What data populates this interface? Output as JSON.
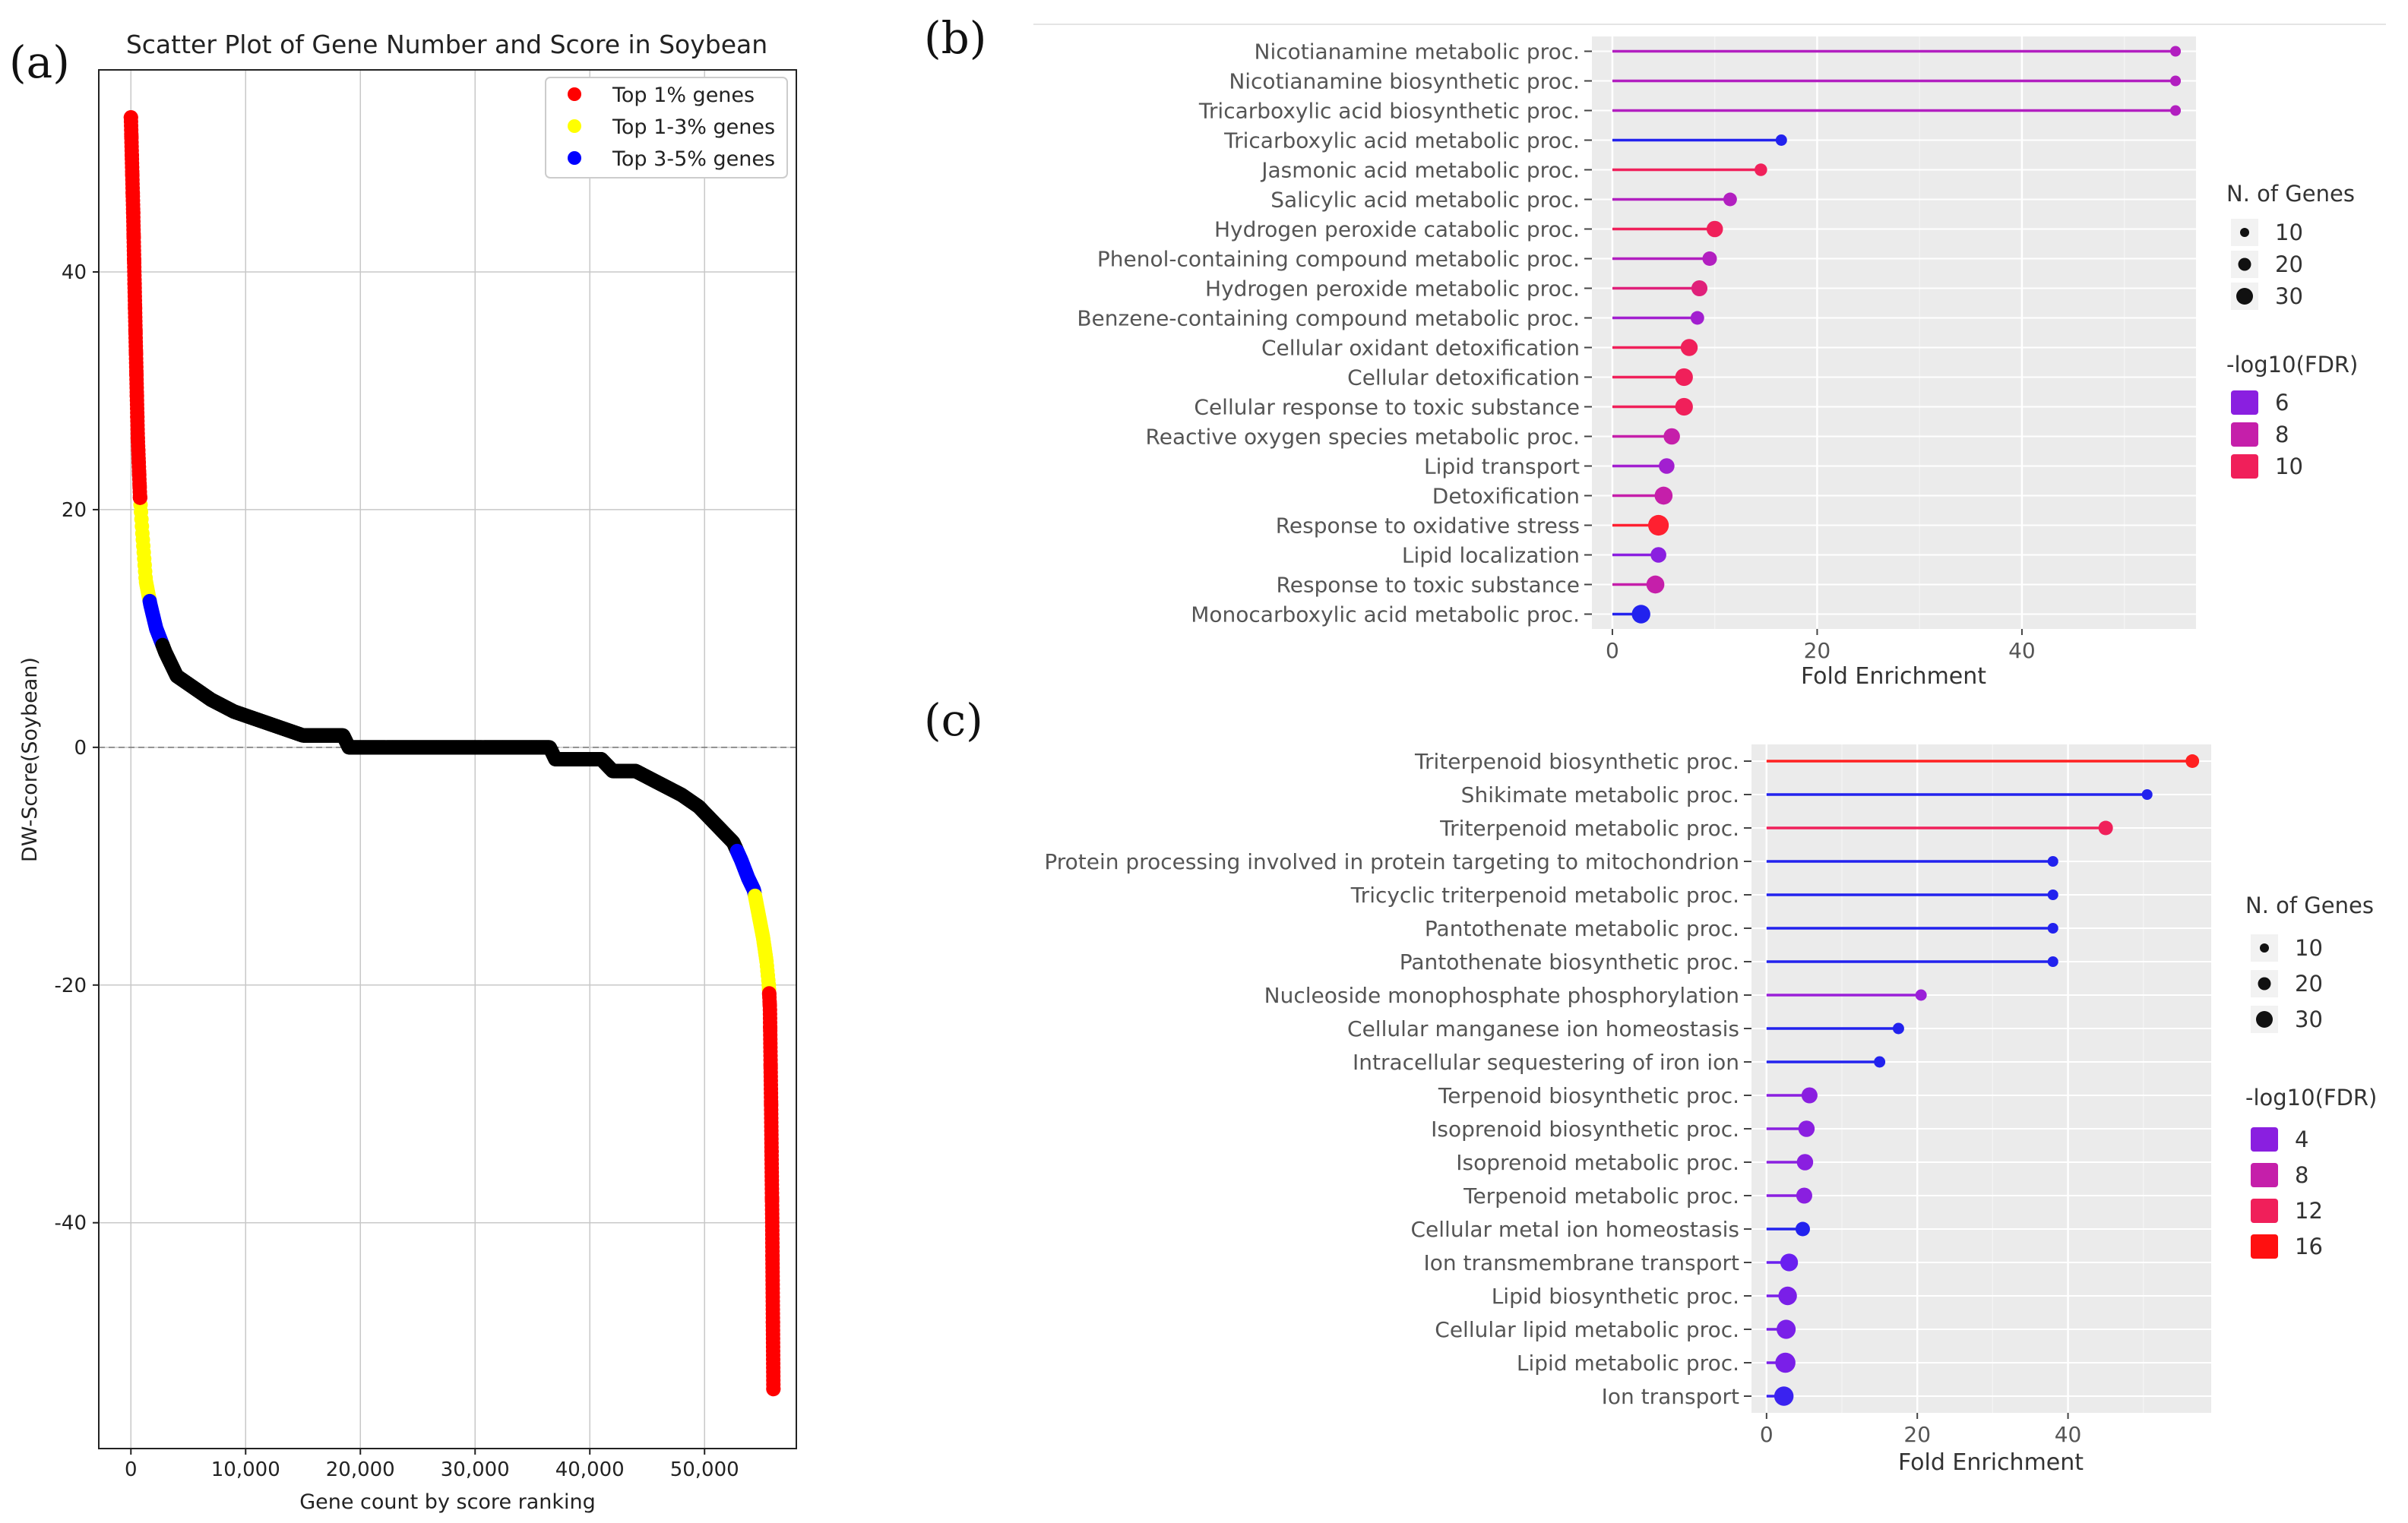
{
  "panels": {
    "a": "(a)",
    "b": "(b)",
    "c": "(c)"
  },
  "chart_data": [
    {
      "type": "scatter",
      "title": "Scatter Plot of Gene Number and Score in Soybean",
      "xlabel": "Gene count by score ranking",
      "ylabel": "DW-Score(Soybean)",
      "xlim": [
        -2800,
        58000
      ],
      "ylim": [
        -59,
        57
      ],
      "xticks": [
        0,
        10000,
        20000,
        30000,
        40000,
        50000
      ],
      "xtick_labels": [
        "0",
        "10,000",
        "20,000",
        "30,000",
        "40,000",
        "50,000"
      ],
      "yticks": [
        40,
        20,
        0,
        -20,
        -40
      ],
      "ytick_labels": [
        "40",
        "20",
        "0",
        "-20",
        "-40"
      ],
      "grid": true,
      "legend_position": "top-right",
      "legend": [
        {
          "label": "Top 1% genes",
          "color": "#ff0000"
        },
        {
          "label": "Top 1-3% genes",
          "color": "#ffff00"
        },
        {
          "label": "Top 3-5% genes",
          "color": "#0000ff"
        }
      ],
      "background_color": "#000000",
      "curve": [
        [
          0,
          53
        ],
        [
          200,
          45
        ],
        [
          400,
          35
        ],
        [
          600,
          26
        ],
        [
          800,
          21
        ],
        [
          1000,
          18
        ],
        [
          1300,
          14
        ],
        [
          1700,
          12
        ],
        [
          2200,
          10
        ],
        [
          3000,
          8
        ],
        [
          4000,
          6
        ],
        [
          5500,
          5
        ],
        [
          7000,
          4
        ],
        [
          9000,
          3
        ],
        [
          12000,
          2
        ],
        [
          15000,
          1
        ],
        [
          18500,
          1
        ],
        [
          19000,
          0
        ],
        [
          36500,
          0
        ],
        [
          37000,
          -1
        ],
        [
          41000,
          -1
        ],
        [
          42000,
          -2
        ],
        [
          44000,
          -2
        ],
        [
          46000,
          -3
        ],
        [
          48000,
          -4
        ],
        [
          49500,
          -5
        ],
        [
          50500,
          -6
        ],
        [
          51500,
          -7
        ],
        [
          52500,
          -8
        ],
        [
          53200,
          -9.5
        ],
        [
          53800,
          -11
        ],
        [
          54300,
          -12
        ],
        [
          54700,
          -14
        ],
        [
          55100,
          -16
        ],
        [
          55400,
          -18
        ],
        [
          55600,
          -20
        ],
        [
          55700,
          -22
        ],
        [
          55800,
          -30
        ],
        [
          55900,
          -40
        ],
        [
          56000,
          -54
        ]
      ]
    },
    {
      "type": "lollipop",
      "xlabel": "Fold Enrichment",
      "xlim": [
        -2,
        57
      ],
      "xticks": [
        0,
        20,
        40
      ],
      "xtick_labels": [
        "0",
        "20",
        "40"
      ],
      "size_legend_title": "N. of Genes",
      "size_legend": [
        {
          "label": "10",
          "value": 10
        },
        {
          "label": "20",
          "value": 20
        },
        {
          "label": "30",
          "value": 30
        }
      ],
      "color_legend_title": "-log10(FDR)",
      "color_legend": [
        {
          "label": "6",
          "color": "#8a1fe0"
        },
        {
          "label": "8",
          "color": "#c51faa"
        },
        {
          "label": "10",
          "color": "#f01f5a"
        }
      ],
      "categories": [
        "Nicotianamine metabolic proc.",
        "Nicotianamine biosynthetic proc.",
        "Tricarboxylic acid biosynthetic proc.",
        "Tricarboxylic acid metabolic proc.",
        "Jasmonic acid metabolic proc.",
        "Salicylic acid metabolic proc.",
        "Hydrogen peroxide catabolic proc.",
        "Phenol-containing compound metabolic proc.",
        "Hydrogen peroxide metabolic proc.",
        "Benzene-containing compound metabolic proc.",
        "Cellular oxidant detoxification",
        "Cellular detoxification",
        "Cellular response to toxic substance",
        "Reactive oxygen species metabolic proc.",
        "Lipid transport",
        "Detoxification",
        "Response to oxidative stress",
        "Lipid localization",
        "Response to toxic substance",
        "Monocarboxylic acid metabolic proc."
      ],
      "values": [
        55,
        55,
        55,
        16.5,
        14.5,
        11.5,
        10,
        9.5,
        8.5,
        8.3,
        7.5,
        7,
        7,
        5.8,
        5.3,
        5,
        4.5,
        4.5,
        4.2,
        2.8
      ],
      "genes": [
        3,
        3,
        3,
        4,
        6,
        8,
        15,
        10,
        14,
        8,
        17,
        19,
        19,
        15,
        13,
        20,
        30,
        13,
        20,
        22
      ],
      "colors": [
        "#b21fc0",
        "#b21fc0",
        "#b21fc0",
        "#2222ee",
        "#f0205a",
        "#b21fc0",
        "#f0205a",
        "#b21fc0",
        "#e0207a",
        "#a21fd0",
        "#f0205a",
        "#f0205a",
        "#f0205a",
        "#c51faa",
        "#a21fd0",
        "#c51faa",
        "#ff2030",
        "#8a1fe0",
        "#c51faa",
        "#2222ee"
      ]
    },
    {
      "type": "lollipop",
      "xlabel": "Fold Enrichment",
      "xlim": [
        -2,
        59
      ],
      "xticks": [
        0,
        20,
        40
      ],
      "xtick_labels": [
        "0",
        "20",
        "40"
      ],
      "size_legend_title": "N. of Genes",
      "size_legend": [
        {
          "label": "10",
          "value": 10
        },
        {
          "label": "20",
          "value": 20
        },
        {
          "label": "30",
          "value": 30
        }
      ],
      "color_legend_title": "-log10(FDR)",
      "color_legend": [
        {
          "label": "4",
          "color": "#8a1fe0"
        },
        {
          "label": "8",
          "color": "#c51faa"
        },
        {
          "label": "12",
          "color": "#f01f5a"
        },
        {
          "label": "16",
          "color": "#ff1010"
        }
      ],
      "categories": [
        "Triterpenoid biosynthetic proc.",
        "Shikimate metabolic proc.",
        "Triterpenoid metabolic proc.",
        "Protein processing involved in protein targeting to mitochondrion",
        "Tricyclic triterpenoid metabolic proc.",
        "Pantothenate metabolic proc.",
        "Pantothenate biosynthetic proc.",
        "Nucleoside monophosphate phosphorylation",
        "Cellular manganese ion homeostasis",
        "Intracellular sequestering of iron ion",
        "Terpenoid biosynthetic proc.",
        "Isoprenoid biosynthetic proc.",
        "Isoprenoid metabolic proc.",
        "Terpenoid metabolic proc.",
        "Cellular metal ion homeostasis",
        "Ion transmembrane transport",
        "Lipid biosynthetic proc.",
        "Cellular lipid metabolic proc.",
        "Lipid metabolic proc.",
        "Ion transport"
      ],
      "values": [
        56.5,
        50.5,
        45,
        38,
        38,
        38,
        38,
        20.5,
        17.5,
        15,
        5.7,
        5.3,
        5.1,
        5,
        4.8,
        3,
        2.8,
        2.6,
        2.5,
        2.3
      ],
      "genes": [
        8,
        3,
        10,
        3,
        3,
        3,
        3,
        4,
        4,
        4,
        14,
        15,
        15,
        14,
        10,
        19,
        22,
        24,
        28,
        25
      ],
      "colors": [
        "#ff2020",
        "#2222ee",
        "#f0205a",
        "#2222ee",
        "#2222ee",
        "#2222ee",
        "#2222ee",
        "#9a1fd8",
        "#2222ee",
        "#2222ee",
        "#8a1fe0",
        "#8a1fe0",
        "#8a1fe0",
        "#8a1fe0",
        "#2222ee",
        "#6a1ff0",
        "#7a1fe8",
        "#7a1fe8",
        "#7a1fe8",
        "#3a22f0"
      ]
    }
  ]
}
